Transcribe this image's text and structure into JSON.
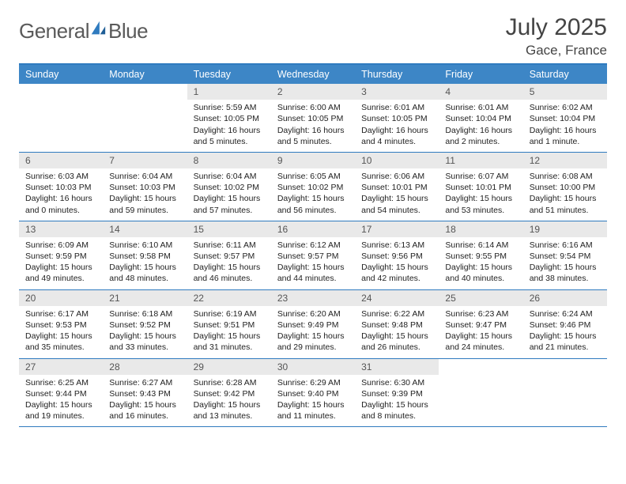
{
  "brand": {
    "word1": "General",
    "word2": "Blue"
  },
  "month_title": "July 2025",
  "location": "Gace, France",
  "colors": {
    "accent": "#3d86c6",
    "accent_border": "#2f7bbf",
    "daynum_bg": "#e9e9e9",
    "text": "#222222",
    "muted": "#555555",
    "bg": "#ffffff"
  },
  "day_headers": [
    "Sunday",
    "Monday",
    "Tuesday",
    "Wednesday",
    "Thursday",
    "Friday",
    "Saturday"
  ],
  "weeks": [
    [
      {
        "num": ""
      },
      {
        "num": ""
      },
      {
        "num": "1",
        "sunrise": "5:59 AM",
        "sunset": "10:05 PM",
        "daylight": "16 hours and 5 minutes."
      },
      {
        "num": "2",
        "sunrise": "6:00 AM",
        "sunset": "10:05 PM",
        "daylight": "16 hours and 5 minutes."
      },
      {
        "num": "3",
        "sunrise": "6:01 AM",
        "sunset": "10:05 PM",
        "daylight": "16 hours and 4 minutes."
      },
      {
        "num": "4",
        "sunrise": "6:01 AM",
        "sunset": "10:04 PM",
        "daylight": "16 hours and 2 minutes."
      },
      {
        "num": "5",
        "sunrise": "6:02 AM",
        "sunset": "10:04 PM",
        "daylight": "16 hours and 1 minute."
      }
    ],
    [
      {
        "num": "6",
        "sunrise": "6:03 AM",
        "sunset": "10:03 PM",
        "daylight": "16 hours and 0 minutes."
      },
      {
        "num": "7",
        "sunrise": "6:04 AM",
        "sunset": "10:03 PM",
        "daylight": "15 hours and 59 minutes."
      },
      {
        "num": "8",
        "sunrise": "6:04 AM",
        "sunset": "10:02 PM",
        "daylight": "15 hours and 57 minutes."
      },
      {
        "num": "9",
        "sunrise": "6:05 AM",
        "sunset": "10:02 PM",
        "daylight": "15 hours and 56 minutes."
      },
      {
        "num": "10",
        "sunrise": "6:06 AM",
        "sunset": "10:01 PM",
        "daylight": "15 hours and 54 minutes."
      },
      {
        "num": "11",
        "sunrise": "6:07 AM",
        "sunset": "10:01 PM",
        "daylight": "15 hours and 53 minutes."
      },
      {
        "num": "12",
        "sunrise": "6:08 AM",
        "sunset": "10:00 PM",
        "daylight": "15 hours and 51 minutes."
      }
    ],
    [
      {
        "num": "13",
        "sunrise": "6:09 AM",
        "sunset": "9:59 PM",
        "daylight": "15 hours and 49 minutes."
      },
      {
        "num": "14",
        "sunrise": "6:10 AM",
        "sunset": "9:58 PM",
        "daylight": "15 hours and 48 minutes."
      },
      {
        "num": "15",
        "sunrise": "6:11 AM",
        "sunset": "9:57 PM",
        "daylight": "15 hours and 46 minutes."
      },
      {
        "num": "16",
        "sunrise": "6:12 AM",
        "sunset": "9:57 PM",
        "daylight": "15 hours and 44 minutes."
      },
      {
        "num": "17",
        "sunrise": "6:13 AM",
        "sunset": "9:56 PM",
        "daylight": "15 hours and 42 minutes."
      },
      {
        "num": "18",
        "sunrise": "6:14 AM",
        "sunset": "9:55 PM",
        "daylight": "15 hours and 40 minutes."
      },
      {
        "num": "19",
        "sunrise": "6:16 AM",
        "sunset": "9:54 PM",
        "daylight": "15 hours and 38 minutes."
      }
    ],
    [
      {
        "num": "20",
        "sunrise": "6:17 AM",
        "sunset": "9:53 PM",
        "daylight": "15 hours and 35 minutes."
      },
      {
        "num": "21",
        "sunrise": "6:18 AM",
        "sunset": "9:52 PM",
        "daylight": "15 hours and 33 minutes."
      },
      {
        "num": "22",
        "sunrise": "6:19 AM",
        "sunset": "9:51 PM",
        "daylight": "15 hours and 31 minutes."
      },
      {
        "num": "23",
        "sunrise": "6:20 AM",
        "sunset": "9:49 PM",
        "daylight": "15 hours and 29 minutes."
      },
      {
        "num": "24",
        "sunrise": "6:22 AM",
        "sunset": "9:48 PM",
        "daylight": "15 hours and 26 minutes."
      },
      {
        "num": "25",
        "sunrise": "6:23 AM",
        "sunset": "9:47 PM",
        "daylight": "15 hours and 24 minutes."
      },
      {
        "num": "26",
        "sunrise": "6:24 AM",
        "sunset": "9:46 PM",
        "daylight": "15 hours and 21 minutes."
      }
    ],
    [
      {
        "num": "27",
        "sunrise": "6:25 AM",
        "sunset": "9:44 PM",
        "daylight": "15 hours and 19 minutes."
      },
      {
        "num": "28",
        "sunrise": "6:27 AM",
        "sunset": "9:43 PM",
        "daylight": "15 hours and 16 minutes."
      },
      {
        "num": "29",
        "sunrise": "6:28 AM",
        "sunset": "9:42 PM",
        "daylight": "15 hours and 13 minutes."
      },
      {
        "num": "30",
        "sunrise": "6:29 AM",
        "sunset": "9:40 PM",
        "daylight": "15 hours and 11 minutes."
      },
      {
        "num": "31",
        "sunrise": "6:30 AM",
        "sunset": "9:39 PM",
        "daylight": "15 hours and 8 minutes."
      },
      {
        "num": ""
      },
      {
        "num": ""
      }
    ]
  ],
  "labels": {
    "sunrise_prefix": "Sunrise: ",
    "sunset_prefix": "Sunset: ",
    "daylight_prefix": "Daylight: "
  }
}
